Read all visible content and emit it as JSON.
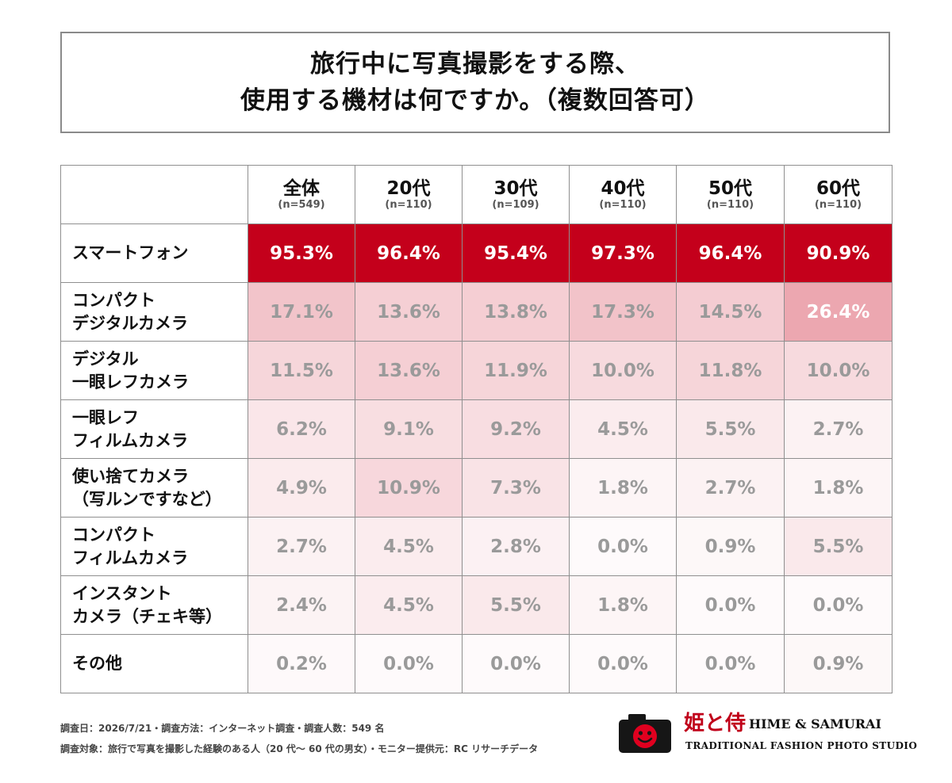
{
  "title": {
    "line1": "旅行中に写真撮影をする際、",
    "line2": "使用する機材は何ですか。（複数回答可）"
  },
  "chart_data": {
    "type": "table",
    "columns": [
      {
        "label": "全体",
        "n": "(n=549)"
      },
      {
        "label": "20代",
        "n": "(n=110)"
      },
      {
        "label": "30代",
        "n": "(n=109)"
      },
      {
        "label": "40代",
        "n": "(n=110)"
      },
      {
        "label": "50代",
        "n": "(n=110)"
      },
      {
        "label": "60代",
        "n": "(n=110)"
      }
    ],
    "rows": [
      {
        "label": [
          "スマートフォン"
        ],
        "values": [
          95.3,
          96.4,
          95.4,
          97.3,
          96.4,
          90.9
        ]
      },
      {
        "label": [
          "コンパクト",
          "デジタルカメラ"
        ],
        "values": [
          17.1,
          13.6,
          13.8,
          17.3,
          14.5,
          26.4
        ]
      },
      {
        "label": [
          "デジタル",
          "一眼レフカメラ"
        ],
        "values": [
          11.5,
          13.6,
          11.9,
          10.0,
          11.8,
          10.0
        ]
      },
      {
        "label": [
          "一眼レフ",
          "フィルムカメラ"
        ],
        "values": [
          6.2,
          9.1,
          9.2,
          4.5,
          5.5,
          2.7
        ]
      },
      {
        "label": [
          "使い捨てカメラ",
          "（写ルンですなど）"
        ],
        "values": [
          4.9,
          10.9,
          7.3,
          1.8,
          2.7,
          1.8
        ]
      },
      {
        "label": [
          "コンパクト",
          "フィルムカメラ"
        ],
        "values": [
          2.7,
          4.5,
          2.8,
          0.0,
          0.9,
          5.5
        ]
      },
      {
        "label": [
          "インスタント",
          "カメラ（チェキ等）"
        ],
        "values": [
          2.4,
          4.5,
          5.5,
          1.8,
          0.0,
          0.0
        ]
      },
      {
        "label": [
          "その他"
        ],
        "values": [
          0.2,
          0.0,
          0.0,
          0.0,
          0.0,
          0.9
        ]
      }
    ],
    "value_suffix": "%",
    "highlight_color": "#c4001b",
    "cell_shading": "red intensity proportional to value"
  },
  "footer": {
    "line1": "調査日：2026/7/21・調査方法：インターネット調査・調査人数：549 名",
    "line2": "調査対象：旅行で写真を撮影した経験のある人（20 代～ 60 代の男女）・モニター提供元：RC リサーチデータ"
  },
  "logo": {
    "jp": "姫と侍",
    "en": "HIME & SAMURAI",
    "tagline": "TRADITIONAL FASHION PHOTO STUDIO",
    "icon": "camera-smiley-icon"
  }
}
